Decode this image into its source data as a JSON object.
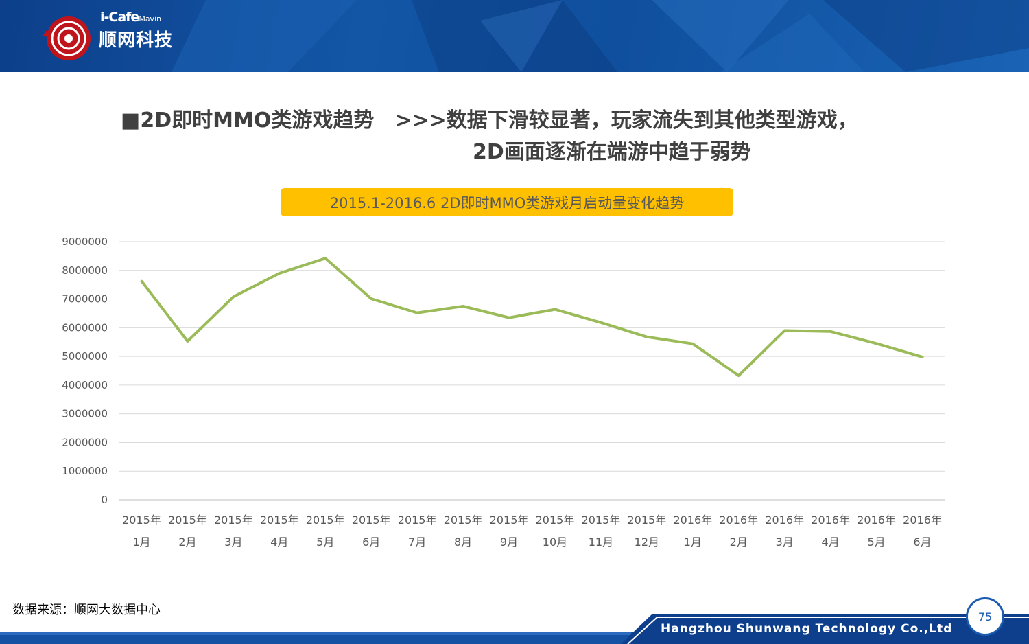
{
  "header": {
    "logo_brand": "i-Cafe",
    "logo_brand_sub": "Mavin",
    "logo_cn": "顺网科技"
  },
  "title": {
    "line1_left": "■2D即时MMO类游戏趋势",
    "line1_right": ">>>数据下滑较显著，玩家流失到其他类型游戏，",
    "line2": "2D画面逐渐在端游中趋于弱势"
  },
  "source": "数据来源：顺网大数据中心",
  "footer": {
    "company": "Hangzhou Shunwang Technology Co.,Ltd",
    "page_number": "75"
  },
  "colors": {
    "header_blue": "#1356a6",
    "title_box": "#ffc000",
    "line": "#9bbb59",
    "grid": "#d9d9d9"
  },
  "chart_data": {
    "type": "line",
    "title": "2015.1-2016.6 2D即时MMO类游戏月启动量变化趋势",
    "xlabel": "",
    "ylabel": "",
    "categories": [
      [
        "2015年",
        "1月"
      ],
      [
        "2015年",
        "2月"
      ],
      [
        "2015年",
        "3月"
      ],
      [
        "2015年",
        "4月"
      ],
      [
        "2015年",
        "5月"
      ],
      [
        "2015年",
        "6月"
      ],
      [
        "2015年",
        "7月"
      ],
      [
        "2015年",
        "8月"
      ],
      [
        "2015年",
        "9月"
      ],
      [
        "2015年",
        "10月"
      ],
      [
        "2015年",
        "11月"
      ],
      [
        "2015年",
        "12月"
      ],
      [
        "2016年",
        "1月"
      ],
      [
        "2016年",
        "2月"
      ],
      [
        "2016年",
        "3月"
      ],
      [
        "2016年",
        "4月"
      ],
      [
        "2016年",
        "5月"
      ],
      [
        "2016年",
        "6月"
      ]
    ],
    "series": [
      {
        "values": [
          7620000,
          5530000,
          7080000,
          7900000,
          8420000,
          7010000,
          6520000,
          6750000,
          6350000,
          6640000,
          6180000,
          5680000,
          5440000,
          4330000,
          5900000,
          5870000,
          5450000,
          4980000
        ]
      }
    ],
    "yticks": [
      "0",
      "1000000",
      "2000000",
      "3000000",
      "4000000",
      "5000000",
      "6000000",
      "7000000",
      "8000000",
      "9000000"
    ],
    "ylim": [
      0,
      9000000
    ],
    "grid": true,
    "legend": "none"
  }
}
